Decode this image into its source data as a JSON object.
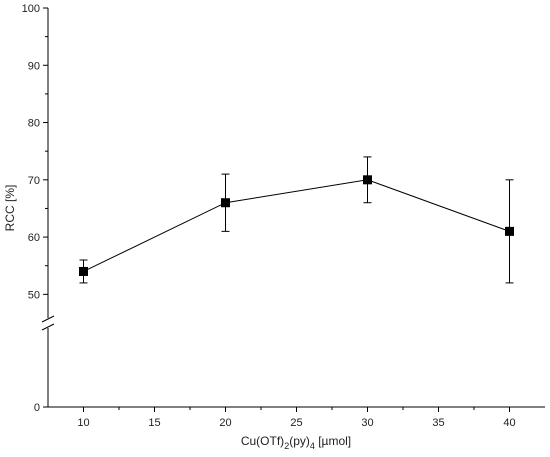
{
  "chart_data": {
    "type": "line",
    "xlabel": {
      "base": "Cu(OTf)",
      "sub1": "2",
      "mid": "(py)",
      "sub2": "4",
      "suffix": " [µmol]"
    },
    "ylabel": "RCC [%]",
    "x_ticks": [
      "10",
      "15",
      "20",
      "25",
      "30",
      "35",
      "40"
    ],
    "y_ticks_upper": [
      "50",
      "60",
      "70",
      "80",
      "90",
      "100"
    ],
    "y_ticks_lower": [
      "0"
    ],
    "xlim": [
      7.5,
      42.5
    ],
    "ylim_upper": [
      45,
      100
    ],
    "ylim_lower": [
      0,
      45
    ],
    "axis_break": true,
    "grid": false,
    "series": [
      {
        "x": [
          10,
          20,
          30,
          40
        ],
        "y": [
          54,
          66,
          70,
          61
        ],
        "err_low": [
          52,
          61,
          66,
          52
        ],
        "err_high": [
          56,
          71,
          74,
          70
        ],
        "marker": "square",
        "color": "#000000"
      }
    ]
  }
}
